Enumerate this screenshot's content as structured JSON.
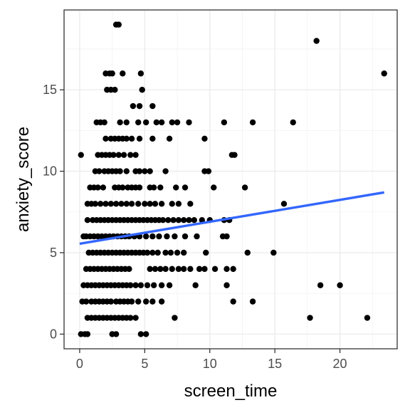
{
  "chart_data": {
    "type": "scatter",
    "xlabel": "screen_time",
    "ylabel": "anxiety_score",
    "xlim": [
      -1.2,
      24.4
    ],
    "ylim": [
      -0.9,
      19.9
    ],
    "x_ticks": [
      0,
      5,
      10,
      15,
      20
    ],
    "y_ticks": [
      0,
      5,
      10,
      15
    ],
    "x_tick_labels": [
      "0",
      "5",
      "10",
      "15",
      "20"
    ],
    "y_tick_labels": [
      "0",
      "5",
      "10",
      "15"
    ],
    "grid": true,
    "legend": "none",
    "point_color": "#000000",
    "fit_color": "#3366FF",
    "points": [
      [
        2.8,
        19
      ],
      [
        3.0,
        19
      ],
      [
        18.2,
        18
      ],
      [
        23.4,
        16
      ],
      [
        2.0,
        16
      ],
      [
        2.3,
        16
      ],
      [
        2.5,
        16
      ],
      [
        4.7,
        16
      ],
      [
        3.3,
        16
      ],
      [
        2.1,
        15
      ],
      [
        2.4,
        15
      ],
      [
        2.7,
        15
      ],
      [
        4.8,
        15
      ],
      [
        4.6,
        14
      ],
      [
        5.6,
        14
      ],
      [
        4.1,
        14
      ],
      [
        1.3,
        13
      ],
      [
        1.6,
        13
      ],
      [
        1.9,
        13
      ],
      [
        3.1,
        13
      ],
      [
        3.6,
        13
      ],
      [
        4.5,
        13
      ],
      [
        5.1,
        13
      ],
      [
        5.9,
        13
      ],
      [
        6.3,
        13
      ],
      [
        7.1,
        13
      ],
      [
        7.5,
        13
      ],
      [
        8.4,
        13
      ],
      [
        11.1,
        13
      ],
      [
        13.3,
        13
      ],
      [
        16.4,
        13
      ],
      [
        2.0,
        12
      ],
      [
        2.4,
        12
      ],
      [
        2.7,
        12
      ],
      [
        3.0,
        12
      ],
      [
        3.3,
        12
      ],
      [
        3.6,
        12
      ],
      [
        4.0,
        12
      ],
      [
        4.6,
        12
      ],
      [
        5.6,
        12
      ],
      [
        6.9,
        12
      ],
      [
        9.6,
        12
      ],
      [
        2.3,
        11
      ],
      [
        2.6,
        11
      ],
      [
        3.0,
        11
      ],
      [
        3.4,
        11
      ],
      [
        3.9,
        11
      ],
      [
        4.3,
        11
      ],
      [
        0.1,
        11
      ],
      [
        1.4,
        11
      ],
      [
        1.7,
        11
      ],
      [
        2.0,
        11
      ],
      [
        11.7,
        11
      ],
      [
        11.9,
        11
      ],
      [
        1.2,
        10
      ],
      [
        1.5,
        10
      ],
      [
        1.9,
        10
      ],
      [
        2.2,
        10
      ],
      [
        2.5,
        10
      ],
      [
        2.8,
        10
      ],
      [
        3.1,
        10
      ],
      [
        3.6,
        10
      ],
      [
        4.3,
        10
      ],
      [
        4.6,
        10
      ],
      [
        5.0,
        10
      ],
      [
        5.4,
        10
      ],
      [
        6.6,
        10
      ],
      [
        9.6,
        10
      ],
      [
        9.9,
        10
      ],
      [
        0.8,
        9
      ],
      [
        1.1,
        9
      ],
      [
        1.4,
        9
      ],
      [
        1.8,
        9
      ],
      [
        2.7,
        9
      ],
      [
        3.0,
        9
      ],
      [
        3.3,
        9
      ],
      [
        3.7,
        9
      ],
      [
        4.0,
        9
      ],
      [
        4.3,
        9
      ],
      [
        4.6,
        9
      ],
      [
        5.4,
        9
      ],
      [
        5.7,
        9
      ],
      [
        6.2,
        9
      ],
      [
        7.4,
        9
      ],
      [
        8.1,
        9
      ],
      [
        10.3,
        9
      ],
      [
        12.7,
        9
      ],
      [
        0.6,
        8
      ],
      [
        0.9,
        8
      ],
      [
        1.2,
        8
      ],
      [
        1.6,
        8
      ],
      [
        2.0,
        8
      ],
      [
        2.4,
        8
      ],
      [
        2.8,
        8
      ],
      [
        3.2,
        8
      ],
      [
        3.6,
        8
      ],
      [
        4.0,
        8
      ],
      [
        4.5,
        8
      ],
      [
        5.0,
        8
      ],
      [
        5.4,
        8
      ],
      [
        5.8,
        8
      ],
      [
        6.3,
        8
      ],
      [
        7.1,
        8
      ],
      [
        7.6,
        8
      ],
      [
        8.5,
        8
      ],
      [
        15.7,
        8
      ],
      [
        0.6,
        7
      ],
      [
        1.0,
        7
      ],
      [
        1.3,
        7
      ],
      [
        1.6,
        7
      ],
      [
        1.9,
        7
      ],
      [
        2.2,
        7
      ],
      [
        2.5,
        7
      ],
      [
        2.8,
        7
      ],
      [
        3.1,
        7
      ],
      [
        3.4,
        7
      ],
      [
        3.7,
        7
      ],
      [
        4.0,
        7
      ],
      [
        4.3,
        7
      ],
      [
        4.6,
        7
      ],
      [
        4.9,
        7
      ],
      [
        5.2,
        7
      ],
      [
        5.5,
        7
      ],
      [
        5.8,
        7
      ],
      [
        6.1,
        7
      ],
      [
        6.4,
        7
      ],
      [
        6.8,
        7
      ],
      [
        7.2,
        7
      ],
      [
        7.6,
        7
      ],
      [
        8.0,
        7
      ],
      [
        8.4,
        7
      ],
      [
        8.8,
        7
      ],
      [
        9.4,
        7
      ],
      [
        10.0,
        7
      ],
      [
        11.1,
        7
      ],
      [
        11.5,
        7
      ],
      [
        0.3,
        6
      ],
      [
        0.5,
        6
      ],
      [
        0.8,
        6
      ],
      [
        1.1,
        6
      ],
      [
        1.4,
        6
      ],
      [
        1.7,
        6
      ],
      [
        2.0,
        6
      ],
      [
        2.3,
        6
      ],
      [
        2.6,
        6
      ],
      [
        2.9,
        6
      ],
      [
        3.2,
        6
      ],
      [
        3.5,
        6
      ],
      [
        3.8,
        6
      ],
      [
        4.2,
        6
      ],
      [
        4.6,
        6
      ],
      [
        5.1,
        6
      ],
      [
        5.6,
        6
      ],
      [
        6.1,
        6
      ],
      [
        6.7,
        6
      ],
      [
        7.3,
        6
      ],
      [
        8.1,
        6
      ],
      [
        9.0,
        6
      ],
      [
        11.0,
        6
      ],
      [
        11.3,
        6
      ],
      [
        0.7,
        5
      ],
      [
        1.0,
        5
      ],
      [
        1.3,
        5
      ],
      [
        1.6,
        5
      ],
      [
        1.9,
        5
      ],
      [
        2.2,
        5
      ],
      [
        2.5,
        5
      ],
      [
        2.8,
        5
      ],
      [
        3.1,
        5
      ],
      [
        3.4,
        5
      ],
      [
        3.7,
        5
      ],
      [
        4.0,
        5
      ],
      [
        4.3,
        5
      ],
      [
        4.6,
        5
      ],
      [
        4.9,
        5
      ],
      [
        5.2,
        5
      ],
      [
        5.6,
        5
      ],
      [
        6.0,
        5
      ],
      [
        6.6,
        5
      ],
      [
        7.0,
        5
      ],
      [
        7.5,
        5
      ],
      [
        8.0,
        5
      ],
      [
        9.7,
        5
      ],
      [
        12.9,
        5
      ],
      [
        14.9,
        5
      ],
      [
        0.5,
        4
      ],
      [
        0.8,
        4
      ],
      [
        1.1,
        4
      ],
      [
        1.4,
        4
      ],
      [
        1.7,
        4
      ],
      [
        2.0,
        4
      ],
      [
        2.3,
        4
      ],
      [
        2.6,
        4
      ],
      [
        2.9,
        4
      ],
      [
        3.2,
        4
      ],
      [
        3.5,
        4
      ],
      [
        3.8,
        4
      ],
      [
        5.4,
        4
      ],
      [
        5.8,
        4
      ],
      [
        6.2,
        4
      ],
      [
        6.6,
        4
      ],
      [
        7.1,
        4
      ],
      [
        7.6,
        4
      ],
      [
        8.0,
        4
      ],
      [
        8.5,
        4
      ],
      [
        9.2,
        4
      ],
      [
        9.6,
        4
      ],
      [
        10.4,
        4
      ],
      [
        11.3,
        4
      ],
      [
        11.8,
        4
      ],
      [
        0.3,
        3
      ],
      [
        0.6,
        3
      ],
      [
        0.9,
        3
      ],
      [
        1.2,
        3
      ],
      [
        1.5,
        3
      ],
      [
        1.8,
        3
      ],
      [
        2.1,
        3
      ],
      [
        2.4,
        3
      ],
      [
        2.7,
        3
      ],
      [
        3.0,
        3
      ],
      [
        3.3,
        3
      ],
      [
        3.6,
        3
      ],
      [
        3.9,
        3
      ],
      [
        4.3,
        3
      ],
      [
        4.7,
        3
      ],
      [
        5.2,
        3
      ],
      [
        5.7,
        3
      ],
      [
        6.3,
        3
      ],
      [
        6.9,
        3
      ],
      [
        8.9,
        3
      ],
      [
        11.3,
        3
      ],
      [
        18.5,
        3
      ],
      [
        20.0,
        3
      ],
      [
        0.2,
        2
      ],
      [
        0.5,
        2
      ],
      [
        0.9,
        2
      ],
      [
        1.2,
        2
      ],
      [
        1.5,
        2
      ],
      [
        1.8,
        2
      ],
      [
        2.1,
        2
      ],
      [
        2.4,
        2
      ],
      [
        2.8,
        2
      ],
      [
        3.1,
        2
      ],
      [
        3.4,
        2
      ],
      [
        3.7,
        2
      ],
      [
        4.0,
        2
      ],
      [
        4.5,
        2
      ],
      [
        5.1,
        2
      ],
      [
        5.6,
        2
      ],
      [
        6.3,
        2
      ],
      [
        11.8,
        2
      ],
      [
        13.3,
        2
      ],
      [
        0.6,
        1
      ],
      [
        0.9,
        1
      ],
      [
        1.2,
        1
      ],
      [
        1.5,
        1
      ],
      [
        1.8,
        1
      ],
      [
        2.1,
        1
      ],
      [
        2.4,
        1
      ],
      [
        2.7,
        1
      ],
      [
        3.0,
        1
      ],
      [
        3.3,
        1
      ],
      [
        3.6,
        1
      ],
      [
        3.9,
        1
      ],
      [
        4.3,
        1
      ],
      [
        7.3,
        1
      ],
      [
        17.7,
        1
      ],
      [
        22.1,
        1
      ],
      [
        0.1,
        0
      ],
      [
        0.4,
        0
      ],
      [
        0.6,
        0
      ],
      [
        2.5,
        0
      ],
      [
        2.8,
        0
      ],
      [
        4.7,
        0
      ],
      [
        5.1,
        0
      ]
    ],
    "fit_line": {
      "x": [
        0.0,
        23.4
      ],
      "y": [
        5.55,
        8.7
      ]
    }
  }
}
